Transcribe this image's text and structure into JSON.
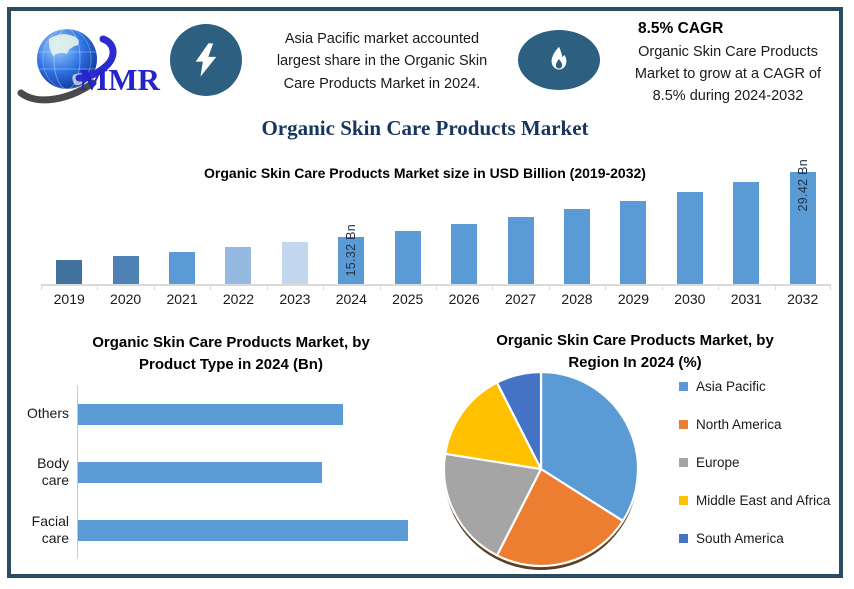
{
  "page_title": "Organic Skin Care Products Market",
  "header": {
    "logo": {
      "text": "MMR"
    },
    "highlight1": {
      "icon": "lightning-icon",
      "lines": [
        "Asia Pacific market accounted",
        "largest share in the Organic Skin",
        "Care Products Market in 2024."
      ]
    },
    "highlight2": {
      "icon": "flame-icon",
      "title": "8.5% CAGR",
      "lines": [
        "Organic Skin Care Products",
        "Market to grow at a CAGR of",
        "8.5% during 2024-2032"
      ]
    }
  },
  "chart_data": [
    {
      "type": "bar",
      "title": "Organic Skin Care Products Market size in USD Billion (2019-2032)",
      "categories": [
        "2019",
        "2020",
        "2021",
        "2022",
        "2023",
        "2024",
        "2025",
        "2026",
        "2027",
        "2028",
        "2029",
        "2030",
        "2031",
        "2032"
      ],
      "values": [
        10.19,
        11.05,
        11.99,
        13.01,
        14.12,
        15.32,
        16.62,
        18.03,
        19.57,
        21.23,
        23.03,
        24.99,
        27.12,
        29.42
      ],
      "ylabel": "USD Billion",
      "ylim": [
        5,
        30
      ],
      "grid": false,
      "data_labels": {
        "2024": "15.32 Bn",
        "2032": "29.42 Bn"
      },
      "bar_colors": [
        "#41719C",
        "#4E81B6",
        "#5B9BD5",
        "#95B9E0",
        "#C2D6EE",
        "#5B9BD5",
        "#5B9BD5",
        "#5B9BD5",
        "#5B9BD5",
        "#5B9BD5",
        "#5B9BD5",
        "#5B9BD5",
        "#5B9BD5",
        "#5B9BD5"
      ]
    },
    {
      "type": "bar",
      "orientation": "horizontal",
      "title_lines": [
        "Organic Skin Care Products Market, by",
        "Product Type in 2024 (Bn)"
      ],
      "categories": [
        "Others",
        "Body care",
        "Facial care"
      ],
      "values": [
        4.9,
        4.5,
        6.1
      ],
      "xlim": [
        0,
        6.5
      ],
      "bar_color": "#5B9BD5"
    },
    {
      "type": "pie",
      "title_lines": [
        "Organic Skin Care Products Market, by",
        "Region In 2024 (%)"
      ],
      "labels": [
        "Asia Pacific",
        "North America",
        "Europe",
        "Middle East and Africa",
        "South America"
      ],
      "values": [
        34,
        23.5,
        20,
        15,
        7.5
      ],
      "colors": [
        "#5B9BD5",
        "#ED7D31",
        "#A5A5A5",
        "#FFC000",
        "#4472C4"
      ],
      "legend_position": "right"
    }
  ],
  "colors": {
    "frame_border": "#2B4C62",
    "icon_background": "#2D5F81",
    "accent_blue": "#5B9BD5",
    "title_navy": "#17365D",
    "bar_label_navy": "#1F3044"
  }
}
